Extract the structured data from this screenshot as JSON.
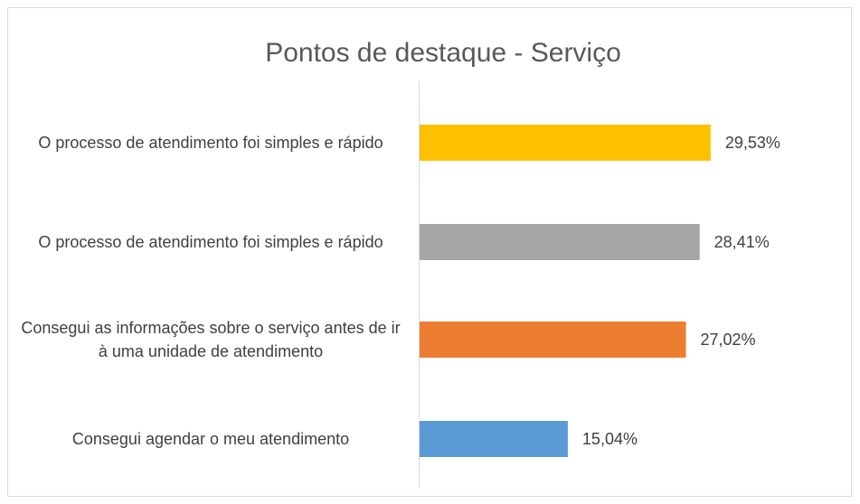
{
  "chart_data": {
    "type": "bar",
    "orientation": "horizontal",
    "title": "Pontos de destaque - Serviço",
    "categories": [
      "O processo de atendimento foi simples e rápido",
      "O processo de atendimento foi simples e rápido",
      "Consegui as informações sobre o serviço antes de ir à uma unidade de atendimento",
      "Consegui agendar o meu atendimento"
    ],
    "values": [
      29.53,
      28.41,
      27.02,
      15.04
    ],
    "value_labels": [
      "29,53%",
      "28,41%",
      "27,02%",
      "15,04%"
    ],
    "colors": [
      "#ffc000",
      "#a5a5a5",
      "#ed7d31",
      "#5b9bd5"
    ]
  }
}
